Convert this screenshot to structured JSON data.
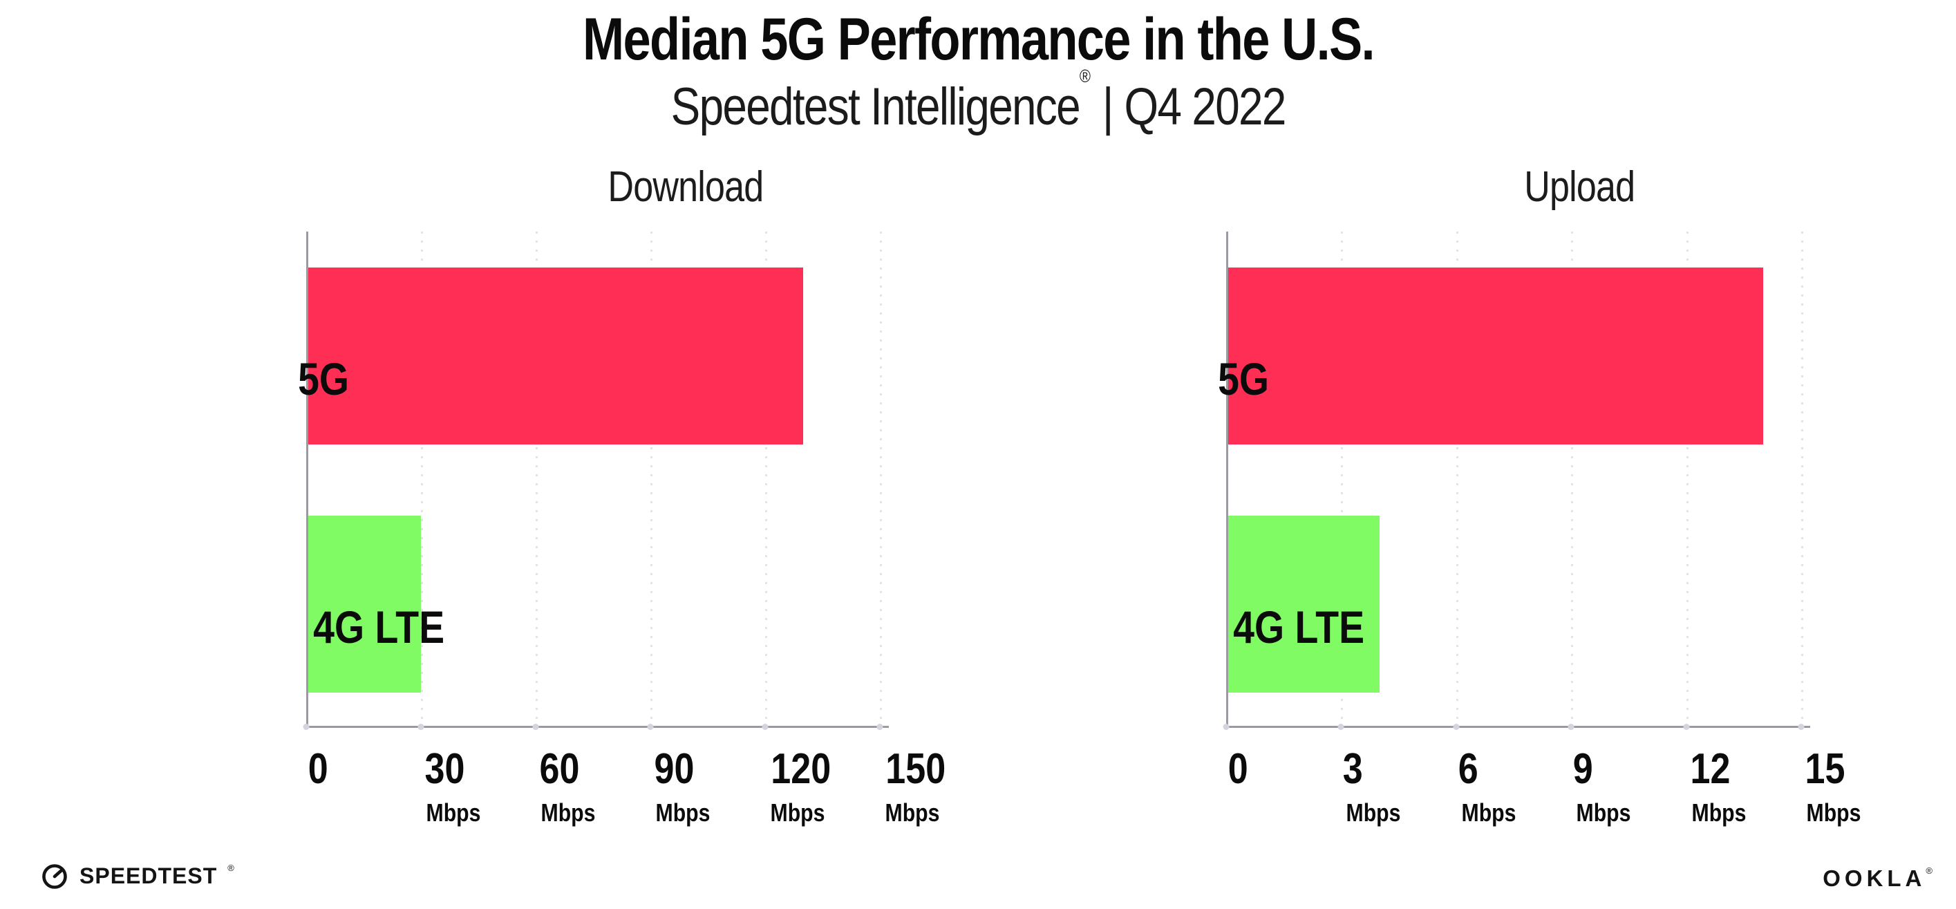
{
  "header": {
    "title": "Median 5G Performance in the U.S.",
    "subtitle": {
      "brand": "Speedtest Intelligence",
      "reg_mark": "®",
      "separator": "|",
      "period": "Q4 2022"
    }
  },
  "footer": {
    "speedtest": {
      "label": "SPEEDTEST",
      "mark": "®",
      "icon": "speedtest-gauge-icon"
    },
    "ookla": {
      "label": "OOKLA",
      "mark": "®"
    }
  },
  "colors": {
    "bar_5g": "#FF2E55",
    "bar_4g_lte": "#80FB63",
    "axis": "#9A9AA2",
    "gridline": "#E2E2EA",
    "text": "#0B0B0B"
  },
  "chart_data": [
    {
      "type": "bar",
      "orientation": "horizontal",
      "title": "Download",
      "categories": [
        "5G",
        "4G LTE"
      ],
      "values": [
        130,
        30
      ],
      "unit": "Mbps",
      "xlim": [
        0,
        150
      ],
      "xticks": [
        0,
        30,
        60,
        90,
        120,
        150
      ],
      "xtick_labels": [
        "0",
        "30",
        "60",
        "90",
        "120",
        "150"
      ],
      "xtick_unit_suffix": "Mbps",
      "unit_on_zero_tick": false,
      "grid": "vertical-dotted",
      "legend": "none",
      "bar_colors": [
        "#FF2E55",
        "#80FB63"
      ]
    },
    {
      "type": "bar",
      "orientation": "horizontal",
      "title": "Upload",
      "categories": [
        "5G",
        "4G LTE"
      ],
      "values": [
        14,
        4
      ],
      "unit": "Mbps",
      "xlim": [
        0,
        15
      ],
      "xticks": [
        0,
        3,
        6,
        9,
        12,
        15
      ],
      "xtick_labels": [
        "0",
        "3",
        "6",
        "9",
        "12",
        "15"
      ],
      "xtick_unit_suffix": "Mbps",
      "unit_on_zero_tick": false,
      "grid": "vertical-dotted",
      "legend": "none",
      "bar_colors": [
        "#FF2E55",
        "#80FB63"
      ]
    }
  ]
}
